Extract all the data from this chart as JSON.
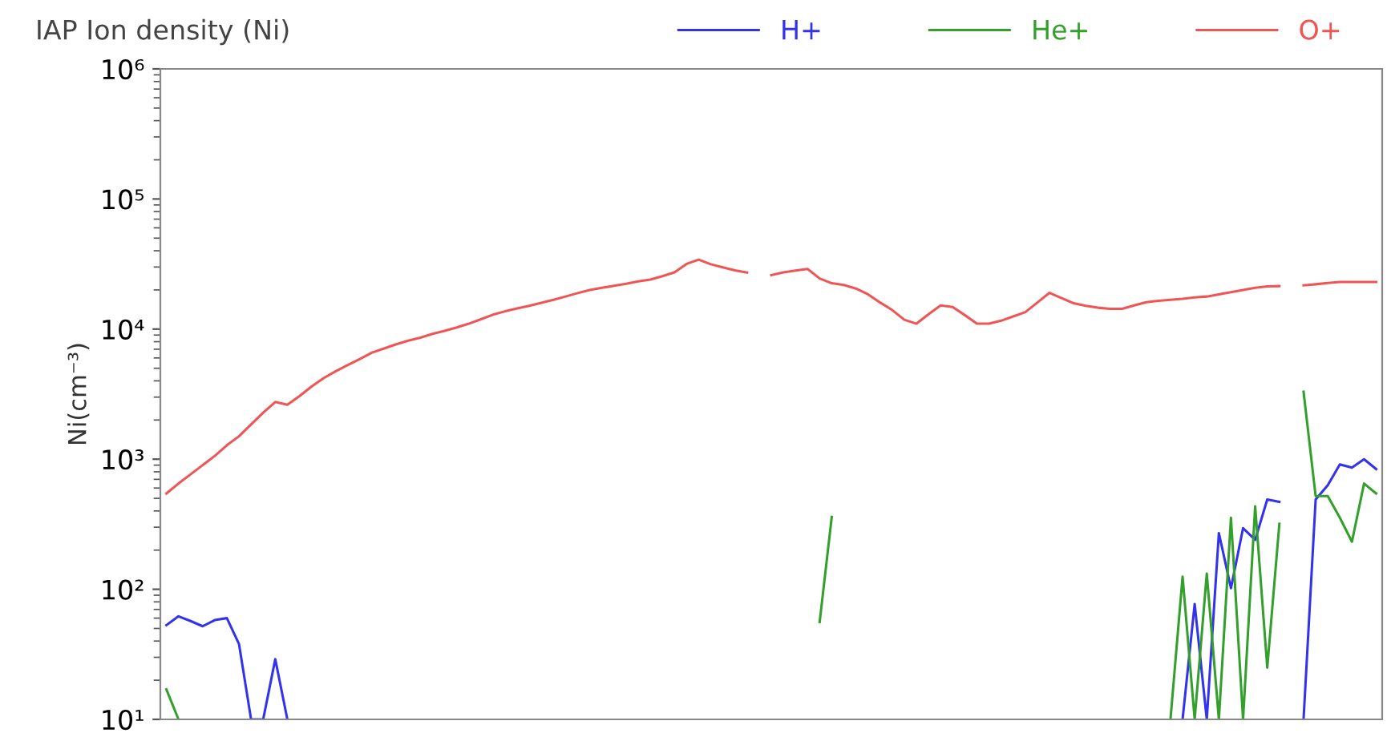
{
  "chart_data": {
    "type": "line",
    "title": "IAP Ion density (Ni)",
    "ylabel": "Ni(cm⁻³)",
    "log": "y",
    "grid": false,
    "legend": "top",
    "marker": "none",
    "line_style": "solid",
    "tick_labels": "y",
    "categories": [
      null,
      null,
      null,
      null,
      null,
      null,
      null,
      null,
      null,
      null,
      null,
      null,
      null,
      null,
      null,
      null,
      null,
      null,
      null,
      null,
      null,
      null,
      null,
      null,
      null,
      null,
      null,
      null,
      null,
      null,
      null,
      null,
      null,
      null,
      null,
      null,
      null,
      null,
      null,
      null,
      null,
      null,
      null,
      null,
      null,
      null,
      null,
      null,
      null,
      null,
      null,
      null,
      null,
      null,
      null,
      null,
      null,
      null,
      null,
      null,
      null,
      null,
      null,
      null,
      null,
      null,
      null,
      null,
      null,
      null,
      null,
      null,
      null,
      null,
      null,
      null,
      null,
      null,
      null,
      null,
      null,
      null,
      null,
      null,
      null,
      null,
      null,
      null,
      null,
      null,
      null,
      null,
      null,
      null,
      null,
      null,
      null,
      null,
      null,
      null,
      null
    ],
    "ylim": [
      10,
      1000000
    ],
    "yticks": [
      {
        "value": 10,
        "label": "10¹"
      },
      {
        "value": 100,
        "label": "10²"
      },
      {
        "value": 1000,
        "label": "10³"
      },
      {
        "value": 10000,
        "label": "10⁴"
      },
      {
        "value": 100000,
        "label": "10⁵"
      },
      {
        "value": 1000000,
        "label": "10⁶"
      }
    ],
    "series": [
      {
        "name": "H+",
        "color": "#3333ee",
        "values": [
          53,
          62,
          57,
          52,
          58,
          60,
          38,
          10,
          10,
          29,
          10,
          null,
          null,
          null,
          null,
          null,
          null,
          null,
          null,
          null,
          null,
          null,
          null,
          null,
          null,
          null,
          null,
          null,
          null,
          null,
          null,
          null,
          null,
          null,
          null,
          null,
          null,
          null,
          null,
          null,
          null,
          null,
          null,
          null,
          null,
          null,
          null,
          null,
          null,
          null,
          null,
          null,
          null,
          null,
          null,
          null,
          null,
          null,
          null,
          null,
          null,
          null,
          null,
          null,
          null,
          null,
          null,
          null,
          null,
          null,
          null,
          null,
          null,
          null,
          null,
          null,
          null,
          null,
          null,
          null,
          null,
          null,
          null,
          null,
          10,
          77,
          10,
          270,
          102,
          295,
          240,
          490,
          470,
          null,
          10,
          490,
          630,
          910,
          860,
          1000,
          840
        ]
      },
      {
        "name": "He+",
        "color": "#33a02c",
        "values": [
          17,
          10,
          null,
          null,
          null,
          null,
          null,
          null,
          null,
          null,
          null,
          null,
          null,
          null,
          null,
          null,
          null,
          null,
          null,
          null,
          null,
          null,
          null,
          null,
          null,
          null,
          null,
          null,
          null,
          null,
          null,
          null,
          null,
          null,
          null,
          null,
          null,
          null,
          null,
          null,
          null,
          null,
          null,
          null,
          null,
          null,
          null,
          null,
          null,
          null,
          null,
          null,
          null,
          null,
          56,
          360,
          null,
          null,
          null,
          null,
          null,
          null,
          null,
          null,
          null,
          null,
          null,
          null,
          null,
          null,
          null,
          null,
          null,
          null,
          null,
          null,
          null,
          null,
          null,
          null,
          null,
          null,
          null,
          10,
          125,
          10,
          132,
          10,
          355,
          10,
          435,
          25,
          318,
          null,
          3300,
          520,
          520,
          355,
          232,
          650,
          545
        ]
      },
      {
        "name": "O+",
        "color": "#f05555",
        "values": [
          545,
          650,
          765,
          900,
          1060,
          1280,
          1500,
          1850,
          2280,
          2750,
          2620,
          3050,
          3620,
          4200,
          4750,
          5300,
          5900,
          6600,
          7100,
          7650,
          8150,
          8600,
          9200,
          9700,
          10300,
          11000,
          11900,
          12900,
          13700,
          14400,
          15100,
          15900,
          16800,
          17800,
          18900,
          20000,
          20800,
          21500,
          22300,
          23300,
          24000,
          25500,
          27300,
          31700,
          34200,
          31500,
          29800,
          28300,
          27200,
          null,
          26000,
          27300,
          28200,
          29000,
          24500,
          22500,
          21800,
          20500,
          18500,
          16000,
          14000,
          11800,
          11000,
          13000,
          15200,
          14800,
          12800,
          11000,
          11000,
          11600,
          12500,
          13500,
          16000,
          19000,
          17300,
          15800,
          15100,
          14600,
          14300,
          14300,
          15200,
          16100,
          16500,
          16800,
          17100,
          17500,
          17800,
          18500,
          19200,
          20000,
          20800,
          21300,
          21400,
          null,
          21700,
          22100,
          22600,
          23000,
          23000,
          23000,
          23000
        ]
      }
    ]
  }
}
